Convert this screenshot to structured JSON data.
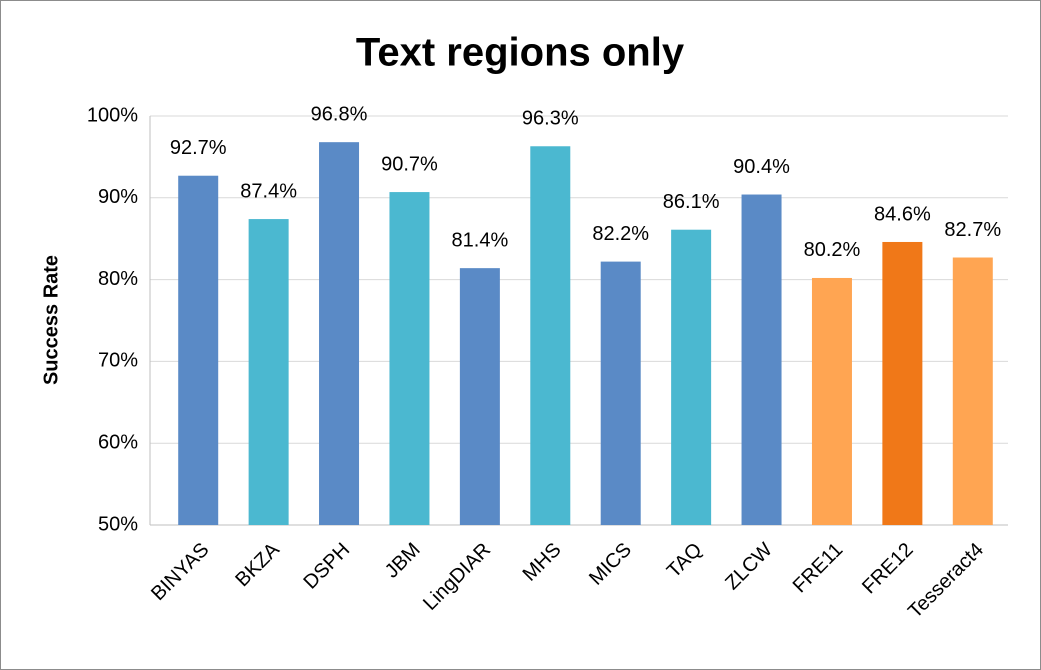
{
  "chart_data": {
    "type": "bar",
    "title": "Text regions only",
    "y_label": "Success Rate",
    "categories": [
      "BINYAS",
      "BKZA",
      "DSPH",
      "JBM",
      "LingDIAR",
      "MHS",
      "MICS",
      "TAQ",
      "ZLCW",
      "FRE11",
      "FRE12",
      "Tesseract4"
    ],
    "values": [
      92.7,
      87.4,
      96.8,
      90.7,
      81.4,
      96.3,
      82.2,
      86.1,
      90.4,
      80.2,
      84.6,
      82.7
    ],
    "value_labels": [
      "92.7%",
      "87.4%",
      "96.8%",
      "90.7%",
      "81.4%",
      "96.3%",
      "82.2%",
      "86.1%",
      "90.4%",
      "80.2%",
      "84.6%",
      "82.7%"
    ],
    "colors": [
      "#5a8ac6",
      "#4bb8d0",
      "#5a8ac6",
      "#4bb8d0",
      "#5a8ac6",
      "#4bb8d0",
      "#5a8ac6",
      "#4bb8d0",
      "#5a8ac6",
      "#ffa552",
      "#f07818",
      "#ffa552"
    ],
    "ylim": [
      50,
      100
    ],
    "yticks": [
      {
        "value": 50,
        "label": "50%"
      },
      {
        "value": 60,
        "label": "60%"
      },
      {
        "value": 70,
        "label": "70%"
      },
      {
        "value": 80,
        "label": "80%"
      },
      {
        "value": 90,
        "label": "90%"
      },
      {
        "value": 100,
        "label": "100%"
      }
    ],
    "grid": true
  }
}
